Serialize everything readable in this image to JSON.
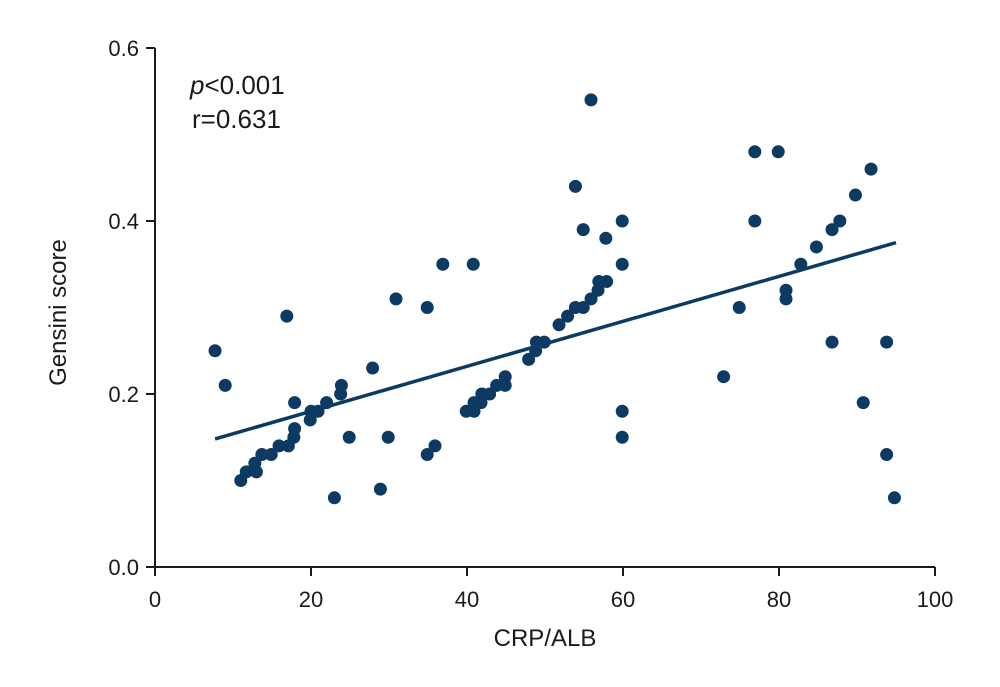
{
  "chart_data": {
    "type": "scatter",
    "xlabel": "CRP/ALB",
    "ylabel": "Gensini score",
    "xlim": [
      0,
      100
    ],
    "ylim": [
      0,
      0.6
    ],
    "xticks": [
      0,
      20,
      40,
      60,
      80,
      100
    ],
    "xtick_labels": [
      "0",
      "20",
      "40",
      "60",
      "80",
      "100"
    ],
    "yticks": [
      0.0,
      0.2,
      0.4,
      0.6
    ],
    "ytick_labels": [
      "0.0",
      "0.2",
      "0.4",
      "0.6"
    ],
    "grid": false,
    "color": "#0d3a63",
    "annotations": {
      "p_symbol": "p",
      "p_value": "<0.001",
      "r_text": "r=0.631"
    },
    "trendline": {
      "x": [
        7.7,
        95.0
      ],
      "y": [
        0.148,
        0.375
      ]
    },
    "points": [
      {
        "x": 7.7,
        "y": 0.25
      },
      {
        "x": 9.0,
        "y": 0.21
      },
      {
        "x": 11.0,
        "y": 0.1
      },
      {
        "x": 11.7,
        "y": 0.11
      },
      {
        "x": 12.8,
        "y": 0.12
      },
      {
        "x": 13.0,
        "y": 0.11
      },
      {
        "x": 13.7,
        "y": 0.13
      },
      {
        "x": 14.9,
        "y": 0.13
      },
      {
        "x": 15.9,
        "y": 0.14
      },
      {
        "x": 16.9,
        "y": 0.29
      },
      {
        "x": 17.1,
        "y": 0.14
      },
      {
        "x": 17.8,
        "y": 0.15
      },
      {
        "x": 17.9,
        "y": 0.16
      },
      {
        "x": 17.9,
        "y": 0.19
      },
      {
        "x": 19.9,
        "y": 0.17
      },
      {
        "x": 20.0,
        "y": 0.18
      },
      {
        "x": 20.9,
        "y": 0.18
      },
      {
        "x": 22.0,
        "y": 0.19
      },
      {
        "x": 23.0,
        "y": 0.08
      },
      {
        "x": 23.8,
        "y": 0.2
      },
      {
        "x": 23.9,
        "y": 0.21
      },
      {
        "x": 24.9,
        "y": 0.15
      },
      {
        "x": 27.9,
        "y": 0.23
      },
      {
        "x": 28.9,
        "y": 0.09
      },
      {
        "x": 29.9,
        "y": 0.15
      },
      {
        "x": 30.9,
        "y": 0.31
      },
      {
        "x": 34.9,
        "y": 0.3
      },
      {
        "x": 34.9,
        "y": 0.13
      },
      {
        "x": 35.9,
        "y": 0.14
      },
      {
        "x": 36.9,
        "y": 0.35
      },
      {
        "x": 39.9,
        "y": 0.18
      },
      {
        "x": 40.8,
        "y": 0.35
      },
      {
        "x": 40.9,
        "y": 0.19
      },
      {
        "x": 40.9,
        "y": 0.18
      },
      {
        "x": 41.8,
        "y": 0.19
      },
      {
        "x": 41.9,
        "y": 0.2
      },
      {
        "x": 42.9,
        "y": 0.2
      },
      {
        "x": 43.8,
        "y": 0.21
      },
      {
        "x": 44.9,
        "y": 0.22
      },
      {
        "x": 44.9,
        "y": 0.21
      },
      {
        "x": 47.9,
        "y": 0.24
      },
      {
        "x": 48.8,
        "y": 0.25
      },
      {
        "x": 48.9,
        "y": 0.26
      },
      {
        "x": 49.9,
        "y": 0.26
      },
      {
        "x": 51.8,
        "y": 0.28
      },
      {
        "x": 52.9,
        "y": 0.29
      },
      {
        "x": 53.9,
        "y": 0.3
      },
      {
        "x": 53.9,
        "y": 0.44
      },
      {
        "x": 54.9,
        "y": 0.39
      },
      {
        "x": 54.9,
        "y": 0.3
      },
      {
        "x": 55.9,
        "y": 0.31
      },
      {
        "x": 55.9,
        "y": 0.54
      },
      {
        "x": 56.8,
        "y": 0.32
      },
      {
        "x": 56.9,
        "y": 0.33
      },
      {
        "x": 57.8,
        "y": 0.38
      },
      {
        "x": 57.9,
        "y": 0.33
      },
      {
        "x": 59.9,
        "y": 0.4
      },
      {
        "x": 59.9,
        "y": 0.35
      },
      {
        "x": 59.9,
        "y": 0.18
      },
      {
        "x": 59.9,
        "y": 0.15
      },
      {
        "x": 72.9,
        "y": 0.22
      },
      {
        "x": 74.9,
        "y": 0.3
      },
      {
        "x": 76.9,
        "y": 0.48
      },
      {
        "x": 76.9,
        "y": 0.4
      },
      {
        "x": 79.9,
        "y": 0.48
      },
      {
        "x": 80.9,
        "y": 0.32
      },
      {
        "x": 80.9,
        "y": 0.31
      },
      {
        "x": 82.8,
        "y": 0.35
      },
      {
        "x": 84.8,
        "y": 0.37
      },
      {
        "x": 86.8,
        "y": 0.39
      },
      {
        "x": 86.8,
        "y": 0.26
      },
      {
        "x": 87.8,
        "y": 0.4
      },
      {
        "x": 89.8,
        "y": 0.43
      },
      {
        "x": 90.8,
        "y": 0.19
      },
      {
        "x": 91.8,
        "y": 0.46
      },
      {
        "x": 93.8,
        "y": 0.26
      },
      {
        "x": 93.8,
        "y": 0.13
      },
      {
        "x": 94.8,
        "y": 0.08
      }
    ]
  }
}
